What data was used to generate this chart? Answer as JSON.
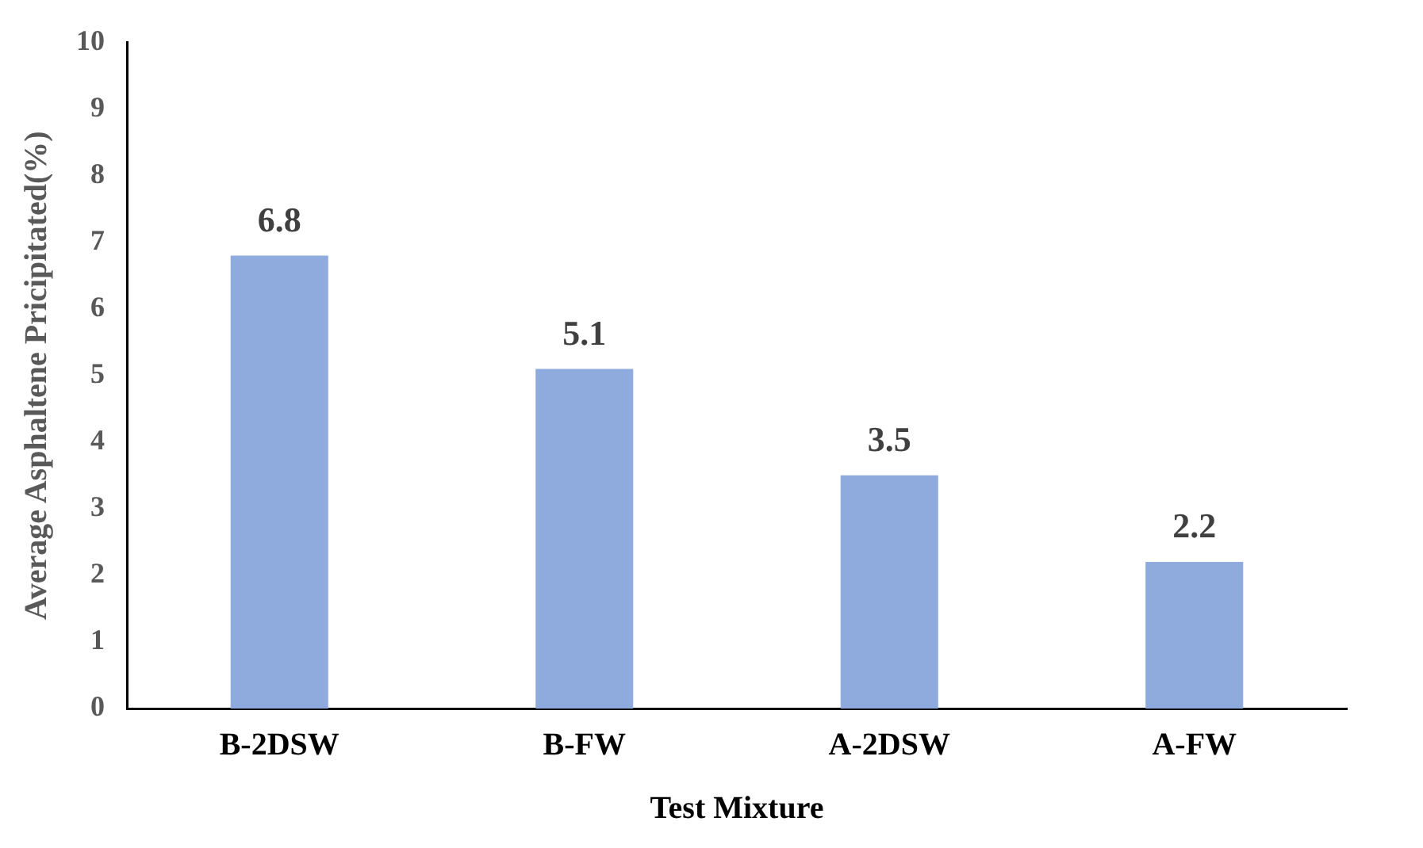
{
  "chart_data": {
    "type": "bar",
    "xlabel": "Test Mixture",
    "ylabel": "Average Asphaltene Pricipitated(%)",
    "categories": [
      "B-2DSW",
      "B-FW",
      "A-2DSW",
      "A-FW"
    ],
    "values": [
      6.8,
      5.1,
      3.5,
      2.2
    ],
    "color": "#8faadc",
    "ylim": [
      0,
      10
    ],
    "yticks": [
      0,
      1,
      2,
      3,
      4,
      5,
      6,
      7,
      8,
      9,
      10
    ],
    "grid": false,
    "legend": false,
    "data_labels": true
  }
}
